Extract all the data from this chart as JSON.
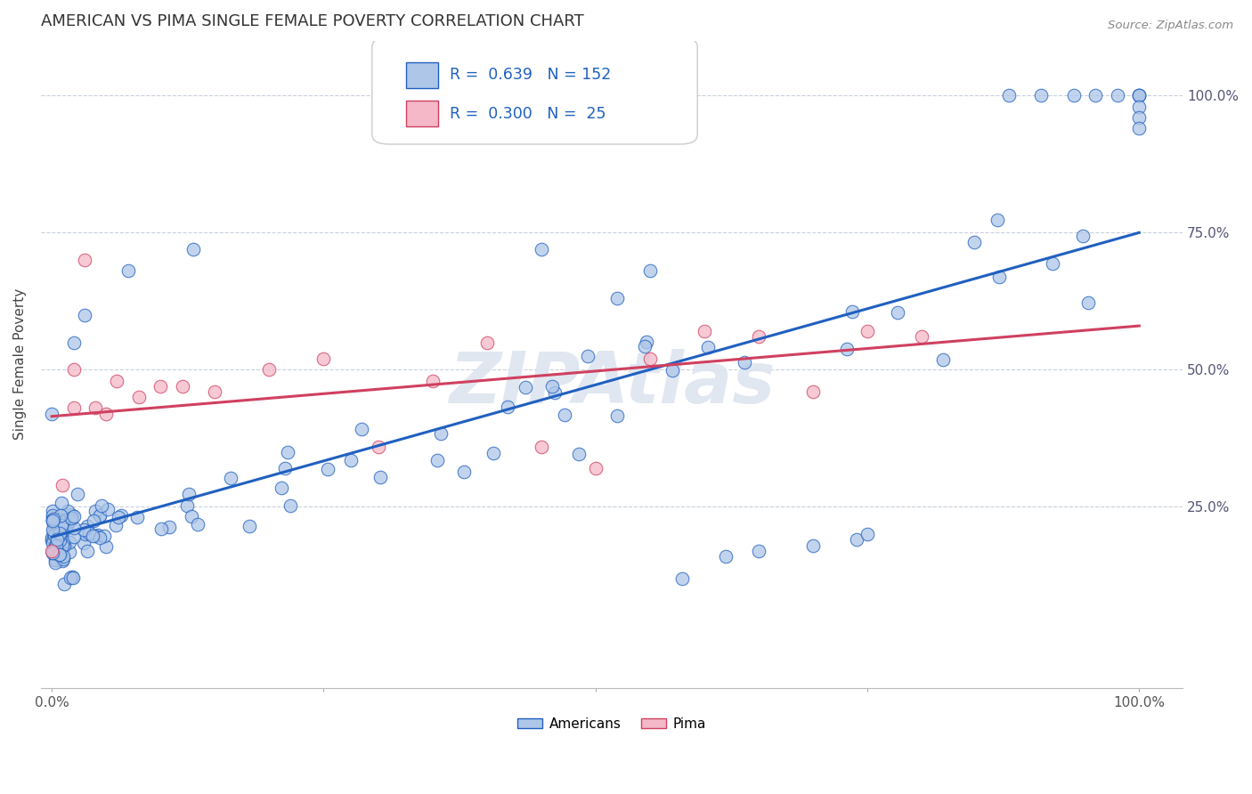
{
  "title": "AMERICAN VS PIMA SINGLE FEMALE POVERTY CORRELATION CHART",
  "source": "Source: ZipAtlas.com",
  "ylabel": "Single Female Poverty",
  "americans_color": "#aec6e8",
  "pima_color": "#f4b8c8",
  "americans_line_color": "#2060c0",
  "pima_line_color": "#d04060",
  "R_americans": 0.639,
  "N_americans": 152,
  "R_pima": 0.3,
  "N_pima": 25,
  "legend_R_color": "#2060c0",
  "watermark_color": "#dde5f0",
  "americans_intercept": 0.195,
  "americans_slope": 0.555,
  "pima_intercept": 0.415,
  "pima_slope": 0.165
}
